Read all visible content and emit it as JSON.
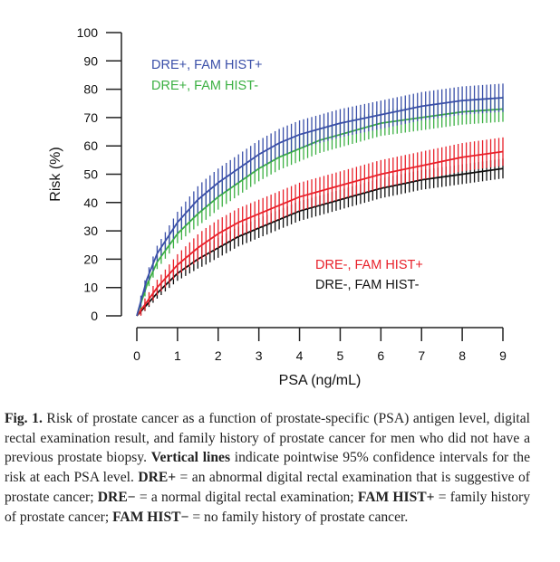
{
  "chart_data": {
    "type": "line",
    "title": "",
    "xlabel": "PSA (ng/mL)",
    "ylabel": "Risk (%)",
    "xlim": [
      0,
      9
    ],
    "ylim": [
      0,
      100
    ],
    "xticks": [
      0,
      1,
      2,
      3,
      4,
      5,
      6,
      7,
      8,
      9
    ],
    "yticks": [
      0,
      10,
      20,
      30,
      40,
      50,
      60,
      70,
      80,
      90,
      100
    ],
    "grid": false,
    "error_bars": "pointwise 95% confidence intervals (vertical lines)",
    "x": [
      0,
      0.25,
      0.5,
      1,
      1.5,
      2,
      2.5,
      3,
      3.5,
      4,
      4.5,
      5,
      5.5,
      6,
      6.5,
      7,
      7.5,
      8,
      8.5,
      9
    ],
    "series": [
      {
        "name": "DRE+, FAM HIST+",
        "color": "#3a4fa8",
        "ci_halfwidth": 5,
        "values": [
          0,
          13,
          22,
          33,
          41,
          47,
          52,
          57,
          61,
          64,
          66,
          68,
          69.5,
          71,
          72.5,
          74,
          75,
          76,
          76.5,
          77
        ]
      },
      {
        "name": "DRE+, FAM HIST-",
        "color": "#3cb043",
        "ci_halfwidth": 4.5,
        "values": [
          0,
          11,
          19,
          29,
          36,
          42,
          47,
          52,
          56,
          59,
          62,
          64,
          66,
          68,
          69,
          70,
          71,
          72,
          72.5,
          73
        ]
      },
      {
        "name": "DRE-, FAM HIST+",
        "color": "#e8202a",
        "ci_halfwidth": 5,
        "values": [
          0,
          5,
          10,
          18,
          24,
          29,
          33,
          36,
          39,
          42,
          44,
          46,
          48,
          50,
          51.5,
          53,
          54.5,
          56,
          57,
          58
        ]
      },
      {
        "name": "DRE-, FAM HIST-",
        "color": "#111111",
        "ci_halfwidth": 3.5,
        "values": [
          0,
          4,
          8,
          15,
          20,
          24,
          28,
          31,
          34,
          37,
          39,
          41,
          43,
          45,
          46.5,
          48,
          49,
          50,
          51,
          52
        ]
      }
    ]
  },
  "caption": {
    "label": "Fig. 1.",
    "t1": " Risk of prostate cancer as a function of prostate-specific (PSA) antigen level, digital rectal examination result, and family history of prostate cancer for men who did not have a previous prostate biopsy. ",
    "b1": "Vertical lines",
    "t2": " indicate pointwise 95% confidence intervals for the risk at each PSA level. ",
    "b2": "DRE+",
    "t3": " = an abnormal digital rectal examination that is suggestive of prostate cancer; ",
    "b3": "DRE−",
    "t4": " = a normal digital rectal examination; ",
    "b4": "FAM HIST+",
    "t5": " = family history of prostate cancer; ",
    "b5": "FAM HIST−",
    "t6": " = no family history of prostate cancer."
  }
}
